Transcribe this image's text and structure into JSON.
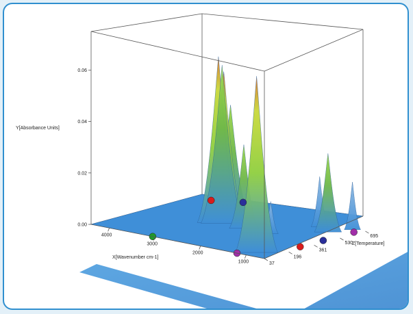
{
  "colors": {
    "frame_border": "#2f8fcf",
    "page_background": "#e3f0f8",
    "surface_base": "#3f8fd8",
    "peak_green": "#8fcf3f",
    "peak_orange": "#d9742e",
    "floor_projection": "#4d9fe0"
  },
  "chart_data": {
    "type": "surface-3d",
    "title": "",
    "xlabel": "X[Wavenumber cm-1]",
    "ylabel": "Y[Absorbance Units]",
    "zlabel": "Z[Temperature]",
    "x_ticks": [
      "4000",
      "3000",
      "2000",
      "1000"
    ],
    "y_ticks": [
      "0.00",
      "0.02",
      "0.04",
      "0.06"
    ],
    "z_ticks": [
      "37",
      "196",
      "361",
      "530",
      "695"
    ],
    "xlim": [
      4400,
      600
    ],
    "ylim": [
      0,
      0.075
    ],
    "zlim": [
      37,
      760
    ],
    "peaks": [
      {
        "x": 2930,
        "z": 430,
        "y": 0.064,
        "color": "orange"
      },
      {
        "x": 2880,
        "z": 450,
        "y": 0.058,
        "color": "orange"
      },
      {
        "x": 2850,
        "z": 430,
        "y": 0.061,
        "color": "green"
      },
      {
        "x": 2800,
        "z": 470,
        "y": 0.045,
        "color": "green"
      },
      {
        "x": 2340,
        "z": 420,
        "y": 0.032,
        "color": "green"
      },
      {
        "x": 1750,
        "z": 420,
        "y": 0.012,
        "color": "blue"
      },
      {
        "x": 1450,
        "z": 650,
        "y": 0.019,
        "color": "blue"
      },
      {
        "x": 1100,
        "z": 600,
        "y": 0.03,
        "color": "green"
      },
      {
        "x": 1050,
        "z": 120,
        "y": 0.068,
        "color": "orange"
      },
      {
        "x": 900,
        "z": 700,
        "y": 0.018,
        "color": "blue"
      }
    ],
    "markers": [
      {
        "x": 4000,
        "z": 700,
        "color": "red"
      },
      {
        "x": 3500,
        "z": 760,
        "color": "blue"
      },
      {
        "x": 3050,
        "z": 37,
        "color": "green"
      },
      {
        "x": 1200,
        "z": 37,
        "color": "purple"
      },
      {
        "x": 700,
        "z": 300,
        "color": "red"
      },
      {
        "x": 700,
        "z": 450,
        "color": "blue"
      },
      {
        "x": 700,
        "z": 650,
        "color": "purple"
      }
    ],
    "legend": "none",
    "grid": false
  }
}
